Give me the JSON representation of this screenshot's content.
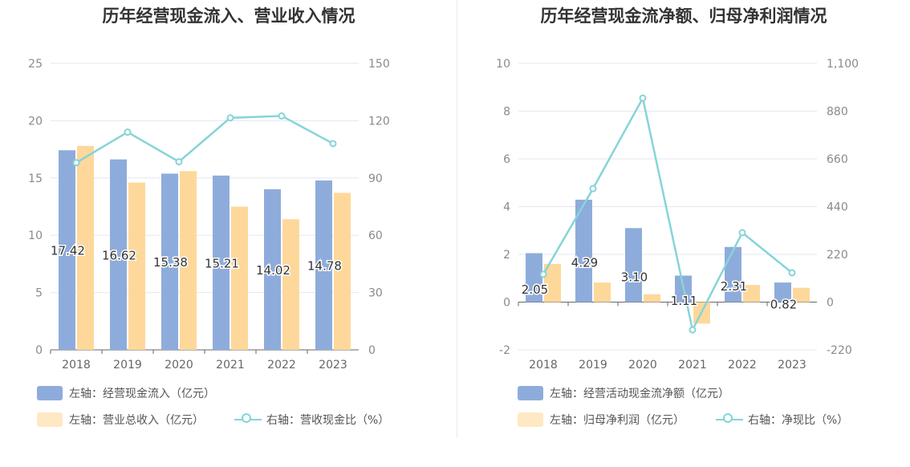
{
  "colors": {
    "bar1": "#8eacdb",
    "bar2": "#fed89b",
    "line": "#86d4d8",
    "grid": "#e4e7f0",
    "axis": "#666666"
  },
  "chart_data": [
    {
      "type": "bar",
      "title": "历年经营现金流入、营业收入情况",
      "categories": [
        "2018",
        "2019",
        "2020",
        "2021",
        "2022",
        "2023"
      ],
      "y_left": {
        "min": 0,
        "max": 25,
        "ticks": [
          "0",
          "5",
          "10",
          "15",
          "20",
          "25"
        ]
      },
      "y_right": {
        "min": 0,
        "max": 150,
        "ticks": [
          "0",
          "30",
          "60",
          "90",
          "120",
          "150"
        ]
      },
      "series": [
        {
          "name": "左轴：经营现金流入（亿元）",
          "type": "bar",
          "axis": "left",
          "values": [
            17.42,
            16.62,
            15.38,
            15.21,
            14.02,
            14.78
          ],
          "labels": [
            "17.42",
            "16.62",
            "15.38",
            "15.21",
            "14.02",
            "14.78"
          ]
        },
        {
          "name": "左轴：营业总收入（亿元）",
          "type": "bar",
          "axis": "left",
          "values": [
            17.8,
            14.6,
            15.6,
            12.5,
            11.4,
            13.7
          ]
        },
        {
          "name": "右轴：营收现金比（%）",
          "type": "line",
          "axis": "right",
          "values": [
            98,
            114,
            98.5,
            121.5,
            122.5,
            108
          ]
        }
      ],
      "legend": [
        "左轴：经营现金流入（亿元）",
        "左轴：营业总收入（亿元）",
        "右轴：营收现金比（%）"
      ]
    },
    {
      "type": "bar",
      "title": "历年经营现金流净额、归母净利润情况",
      "categories": [
        "2018",
        "2019",
        "2020",
        "2021",
        "2022",
        "2023"
      ],
      "y_left": {
        "min": -2,
        "max": 10,
        "ticks": [
          "-2",
          "0",
          "2",
          "4",
          "6",
          "8",
          "10"
        ]
      },
      "y_right": {
        "min": -220,
        "max": 1100,
        "ticks": [
          "-220",
          "0",
          "220",
          "440",
          "660",
          "880",
          "1,100"
        ]
      },
      "series": [
        {
          "name": "左轴：经营活动现金流净额（亿元）",
          "type": "bar",
          "axis": "left",
          "values": [
            2.05,
            4.29,
            3.1,
            1.11,
            2.31,
            0.82
          ],
          "labels": [
            "2.05",
            "4.29",
            "3.10",
            "1.11",
            "2.31",
            "0.82"
          ]
        },
        {
          "name": "左轴：归母净利润（亿元）",
          "type": "bar",
          "axis": "left",
          "values": [
            1.6,
            0.82,
            0.33,
            -0.9,
            0.72,
            0.6
          ]
        },
        {
          "name": "右轴：净现比（%）",
          "type": "line",
          "axis": "right",
          "values": [
            128,
            523,
            940,
            -128,
            320,
            135
          ]
        }
      ],
      "legend": [
        "左轴：经营活动现金流净额（亿元）",
        "左轴：归母净利润（亿元）",
        "右轴：净现比（%）"
      ]
    }
  ]
}
